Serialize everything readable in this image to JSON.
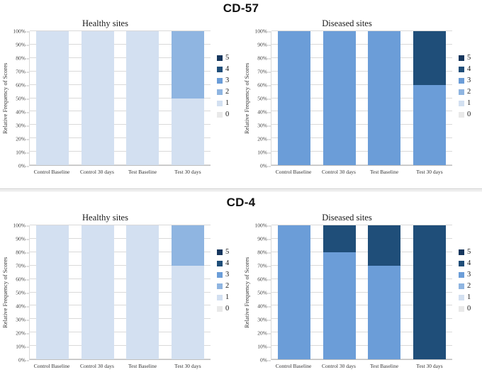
{
  "panels": [
    {
      "title": "CD-57"
    },
    {
      "title": "CD-4"
    }
  ],
  "axis": {
    "ylabel": "Relative Frequency of Scores",
    "yticks": [
      "100%",
      "90%",
      "80%",
      "70%",
      "60%",
      "50%",
      "40%",
      "30%",
      "20%",
      "10%",
      "0%"
    ]
  },
  "legend": {
    "position": "right",
    "items": [
      {
        "label": "5",
        "color": "#17375e"
      },
      {
        "label": "4",
        "color": "#1f4e79"
      },
      {
        "label": "3",
        "color": "#6b9dd8"
      },
      {
        "label": "2",
        "color": "#8fb5e1"
      },
      {
        "label": "1",
        "color": "#d3e0f1"
      },
      {
        "label": "0",
        "color": "#e9e9e9"
      }
    ]
  },
  "chart_data": [
    {
      "type": "bar",
      "stacked": true,
      "panel": "CD-57",
      "title": "Healthy sites",
      "ylabel": "Relative Frequency of Scores",
      "ylim": [
        0,
        100
      ],
      "ytick_step": 10,
      "grid": true,
      "legend_position": "right",
      "categories": [
        "Control Baseline",
        "Control 30 days",
        "Test Baseline",
        "Test 30 days"
      ],
      "series": [
        {
          "name": "0",
          "values": [
            0,
            0,
            0,
            0
          ]
        },
        {
          "name": "1",
          "values": [
            100,
            100,
            100,
            50
          ]
        },
        {
          "name": "2",
          "values": [
            0,
            0,
            0,
            50
          ]
        },
        {
          "name": "3",
          "values": [
            0,
            0,
            0,
            0
          ]
        },
        {
          "name": "4",
          "values": [
            0,
            0,
            0,
            0
          ]
        },
        {
          "name": "5",
          "values": [
            0,
            0,
            0,
            0
          ]
        }
      ]
    },
    {
      "type": "bar",
      "stacked": true,
      "panel": "CD-57",
      "title": "Diseased sites",
      "ylabel": "Relative Frequency of Scores",
      "ylim": [
        0,
        100
      ],
      "ytick_step": 10,
      "grid": true,
      "legend_position": "right",
      "categories": [
        "Control Baseline",
        "Control 30 days",
        "Test Baseline",
        "Test 30 days"
      ],
      "series": [
        {
          "name": "0",
          "values": [
            0,
            0,
            0,
            0
          ]
        },
        {
          "name": "1",
          "values": [
            0,
            0,
            0,
            0
          ]
        },
        {
          "name": "2",
          "values": [
            0,
            0,
            0,
            0
          ]
        },
        {
          "name": "3",
          "values": [
            100,
            100,
            100,
            60
          ]
        },
        {
          "name": "4",
          "values": [
            0,
            0,
            0,
            40
          ]
        },
        {
          "name": "5",
          "values": [
            0,
            0,
            0,
            0
          ]
        }
      ]
    },
    {
      "type": "bar",
      "stacked": true,
      "panel": "CD-4",
      "title": "Healthy sites",
      "ylabel": "Relative Frequency of Scores",
      "ylim": [
        0,
        100
      ],
      "ytick_step": 10,
      "grid": true,
      "legend_position": "right",
      "categories": [
        "Control Baseline",
        "Control 30 days",
        "Test Baseline",
        "Test 30 days"
      ],
      "series": [
        {
          "name": "0",
          "values": [
            0,
            0,
            0,
            0
          ]
        },
        {
          "name": "1",
          "values": [
            100,
            100,
            100,
            70
          ]
        },
        {
          "name": "2",
          "values": [
            0,
            0,
            0,
            30
          ]
        },
        {
          "name": "3",
          "values": [
            0,
            0,
            0,
            0
          ]
        },
        {
          "name": "4",
          "values": [
            0,
            0,
            0,
            0
          ]
        },
        {
          "name": "5",
          "values": [
            0,
            0,
            0,
            0
          ]
        }
      ]
    },
    {
      "type": "bar",
      "stacked": true,
      "panel": "CD-4",
      "title": "Diseased sites",
      "ylabel": "Relative Frequency of Scores",
      "ylim": [
        0,
        100
      ],
      "ytick_step": 10,
      "grid": true,
      "legend_position": "right",
      "categories": [
        "Control Baseline",
        "Control 30 days",
        "Test Baseline",
        "Test 30 days"
      ],
      "series": [
        {
          "name": "0",
          "values": [
            0,
            0,
            0,
            0
          ]
        },
        {
          "name": "1",
          "values": [
            0,
            0,
            0,
            0
          ]
        },
        {
          "name": "2",
          "values": [
            0,
            0,
            0,
            0
          ]
        },
        {
          "name": "3",
          "values": [
            100,
            80,
            70,
            0
          ]
        },
        {
          "name": "4",
          "values": [
            0,
            20,
            30,
            100
          ]
        },
        {
          "name": "5",
          "values": [
            0,
            0,
            0,
            0
          ]
        }
      ]
    }
  ]
}
